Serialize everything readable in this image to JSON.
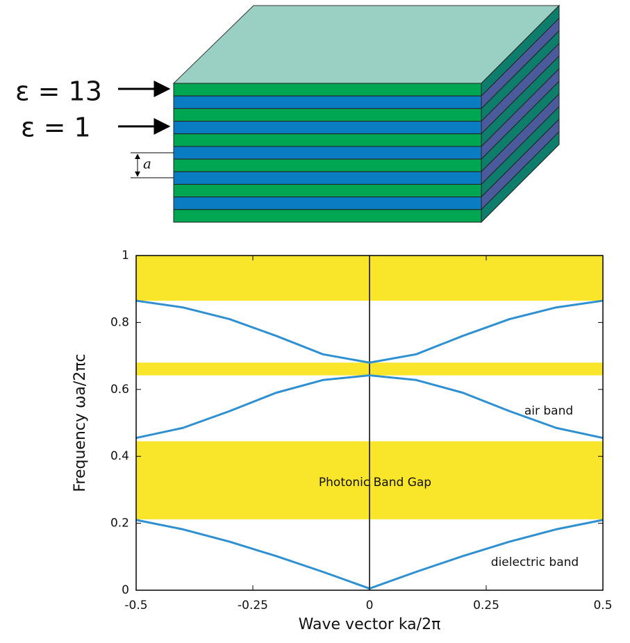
{
  "diagram": {
    "labels": [
      "ε = 13",
      "ε = 1"
    ],
    "period_label": "a"
  },
  "chart_data": {
    "type": "line",
    "x_label": "Wave vector  ka/2π",
    "y_label": "Frequency  ωa/2πc",
    "x": [
      -0.5,
      -0.4,
      -0.3,
      -0.2,
      -0.1,
      0,
      0.1,
      0.2,
      0.3,
      0.4,
      0.5
    ],
    "series": [
      {
        "color": "#2e90d0",
        "values": [
          0.21,
          0.182,
          0.145,
          0.102,
          0.055,
          0.005,
          0.055,
          0.102,
          0.145,
          0.182,
          0.21
        ]
      },
      {
        "color": "#2e90d0",
        "values": [
          0.455,
          0.485,
          0.535,
          0.59,
          0.628,
          0.642,
          0.628,
          0.59,
          0.535,
          0.485,
          0.455
        ]
      },
      {
        "color": "#2e90d0",
        "values": [
          0.865,
          0.845,
          0.81,
          0.76,
          0.705,
          0.68,
          0.705,
          0.76,
          0.81,
          0.845,
          0.865
        ]
      }
    ],
    "gaps": [
      [
        0.212,
        0.445
      ],
      [
        0.642,
        0.68
      ],
      [
        0.865,
        1
      ]
    ],
    "gap_color": "#f9e52a",
    "annotations": [
      "Photonic Band Gap",
      "air band",
      "dielectric band"
    ],
    "xlim": [
      -0.5,
      0.5
    ],
    "xticks": [
      -0.5,
      -0.25,
      0,
      0.25,
      0.5
    ],
    "ylim": [
      0,
      1
    ],
    "yticks": [
      0,
      0.2,
      0.4,
      0.6,
      0.8,
      1
    ],
    "zero_line": true
  }
}
